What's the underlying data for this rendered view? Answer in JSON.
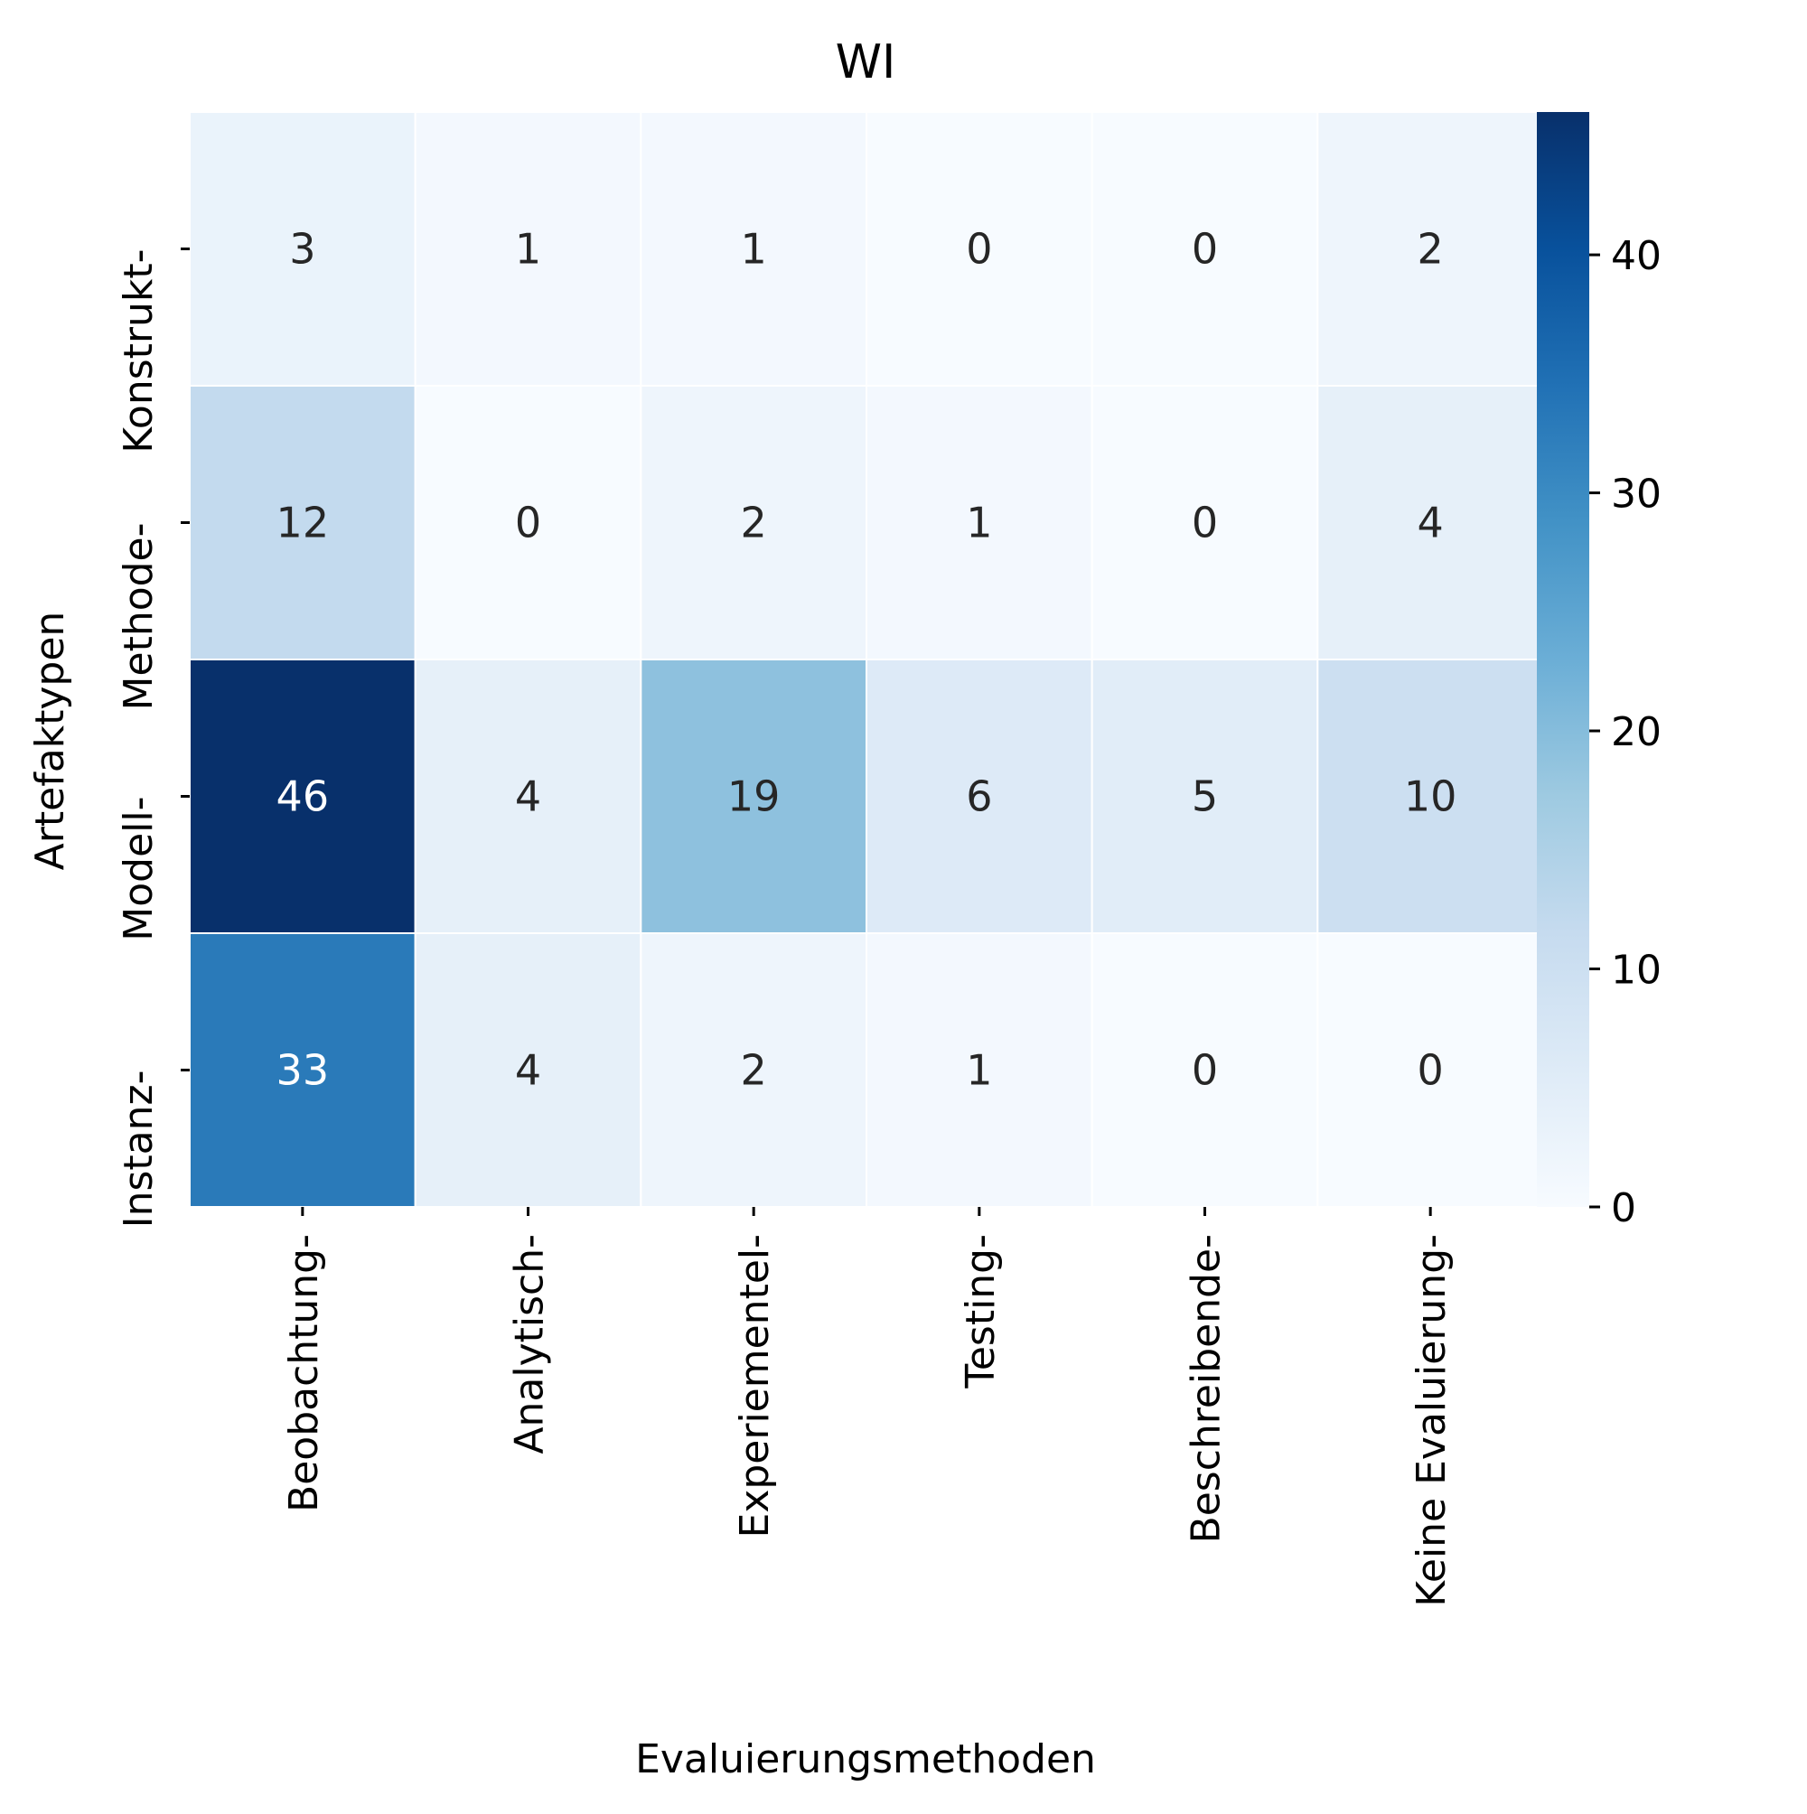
{
  "chart_data": {
    "type": "heatmap",
    "title": "WI",
    "xlabel": "Evaluierungsmethoden",
    "ylabel": "Artefaktypen",
    "x_categories": [
      "Beobachtung-",
      "Analytisch-",
      "Experiementel-",
      "Testing-",
      "Beschreibende-",
      "Keine Evaluierung-"
    ],
    "y_categories": [
      "Konstrukt-",
      "Methode-",
      "Modell-",
      "Instanz-"
    ],
    "values": [
      [
        3,
        1,
        1,
        0,
        0,
        2
      ],
      [
        12,
        0,
        2,
        1,
        0,
        4
      ],
      [
        46,
        4,
        19,
        6,
        5,
        10
      ],
      [
        33,
        4,
        2,
        1,
        0,
        0
      ]
    ],
    "colormap": "Blues",
    "color_range": [
      0,
      46
    ],
    "colorbar_ticks": [
      0,
      10,
      20,
      30,
      40
    ],
    "colorbar_tick_labels": [
      "0",
      "10",
      "20",
      "30",
      "40"
    ],
    "annotations": true
  }
}
